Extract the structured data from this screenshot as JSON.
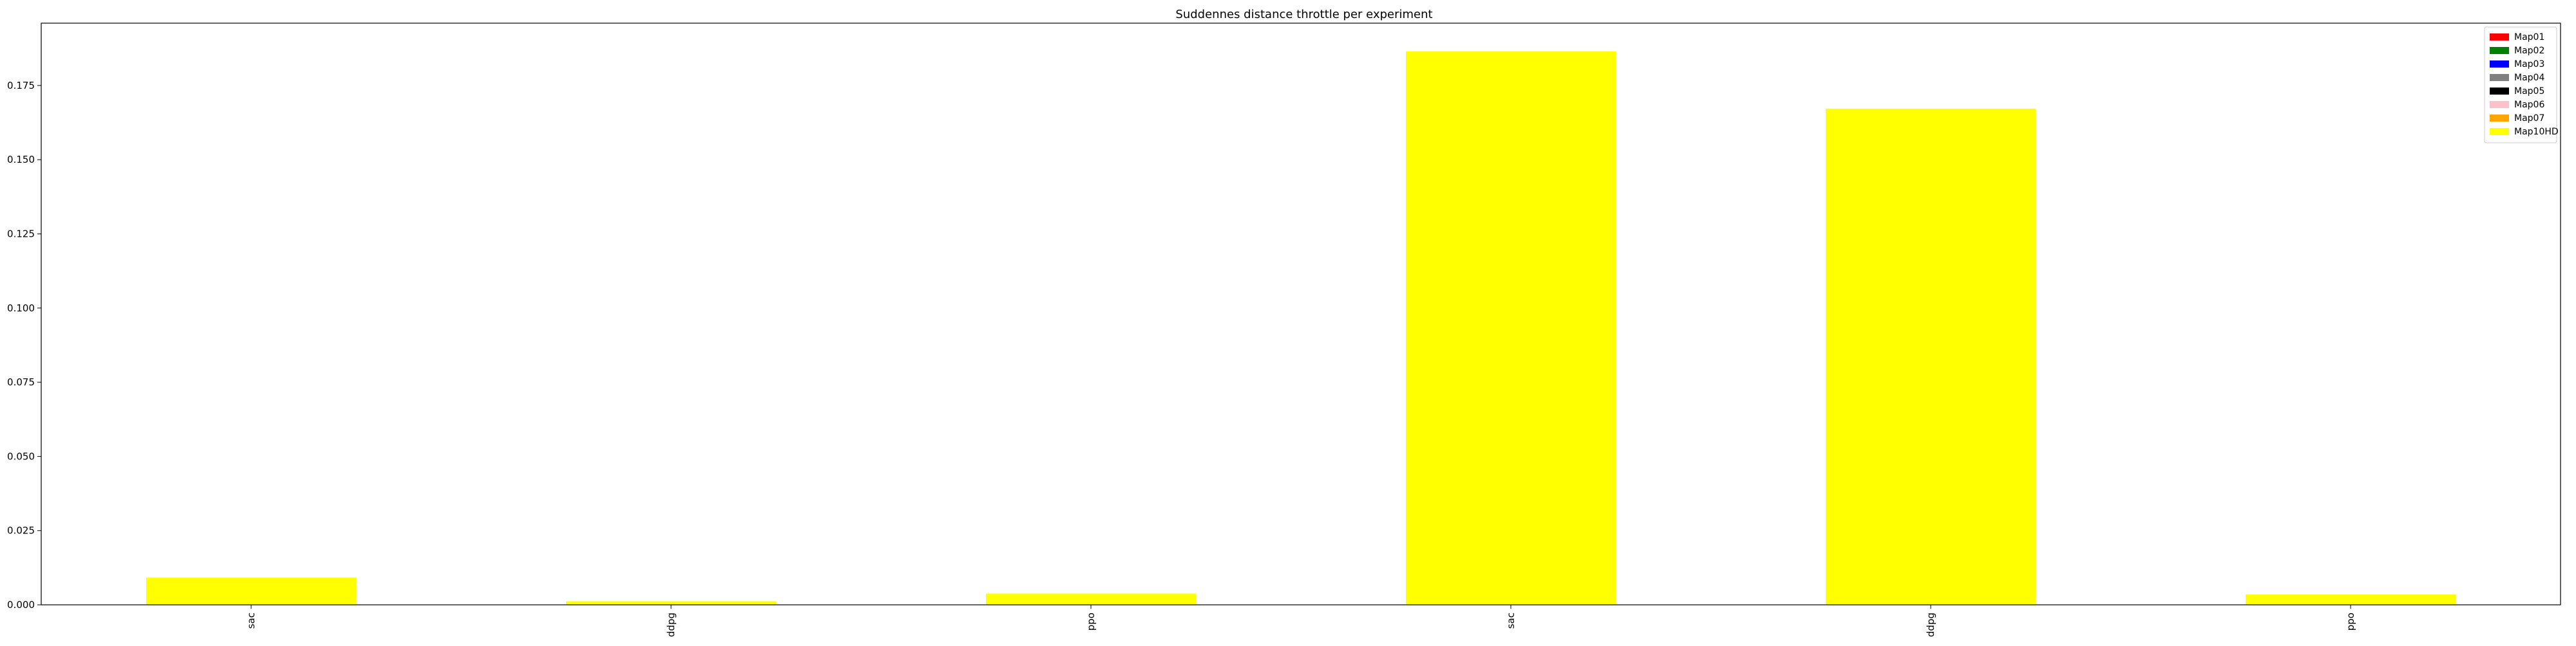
{
  "chart_data": {
    "type": "bar",
    "title": "Suddennes distance throttle per experiment",
    "xlabel": "",
    "ylabel": "",
    "categories": [
      "sac",
      "ddpg",
      "ppo",
      "sac",
      "ddpg",
      "ppo"
    ],
    "values": [
      0.0092,
      0.0012,
      0.0038,
      0.1865,
      0.1672,
      0.0035
    ],
    "bar_color": "#ffff00",
    "ylim": [
      0,
      0.196
    ],
    "yticks": [
      0.0,
      0.025,
      0.05,
      0.075,
      0.1,
      0.125,
      0.15,
      0.175
    ],
    "ytick_labels": [
      "0.000",
      "0.025",
      "0.050",
      "0.075",
      "0.100",
      "0.125",
      "0.150",
      "0.175"
    ],
    "grid": false,
    "legend_position": "top-right",
    "legend": [
      {
        "label": "Map01",
        "color": "#ff0000"
      },
      {
        "label": "Map02",
        "color": "#008000"
      },
      {
        "label": "Map03",
        "color": "#0000ff"
      },
      {
        "label": "Map04",
        "color": "#808080"
      },
      {
        "label": "Map05",
        "color": "#000000"
      },
      {
        "label": "Map06",
        "color": "#ffc0cb"
      },
      {
        "label": "Map07",
        "color": "#ffa500"
      },
      {
        "label": "Map10HD",
        "color": "#ffff00"
      }
    ]
  }
}
